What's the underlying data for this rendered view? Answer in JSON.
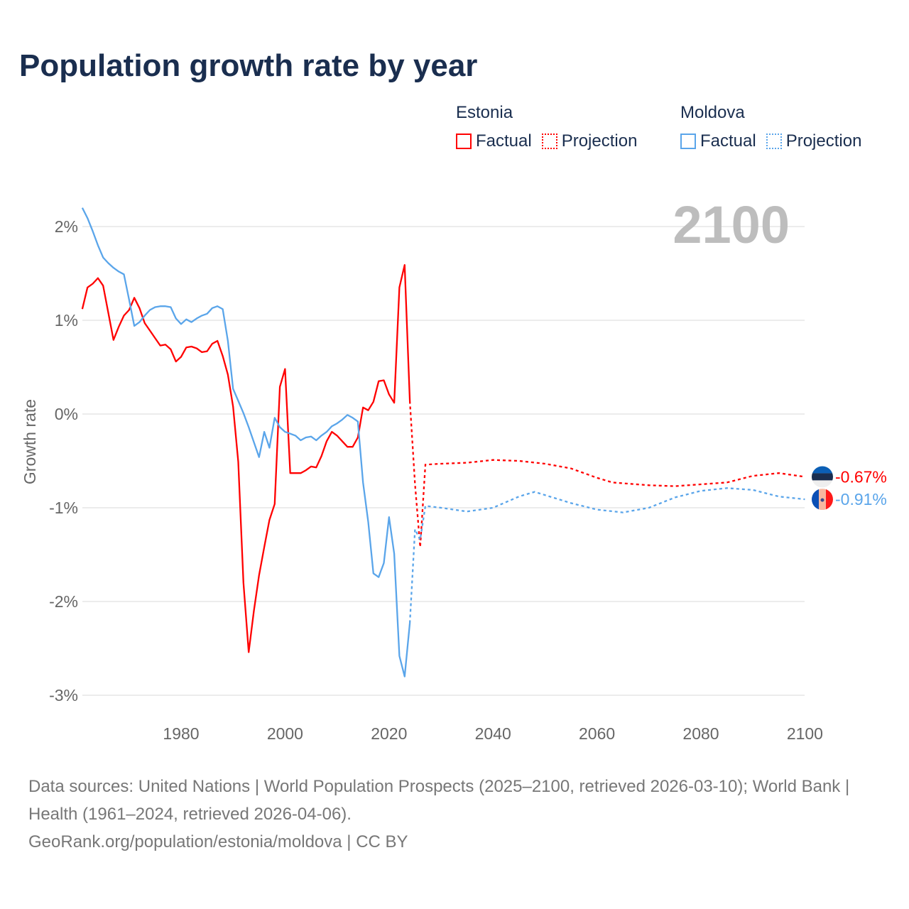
{
  "chart_data": {
    "type": "line",
    "title": "Population growth rate by year",
    "xlabel": "",
    "ylabel": "Growth rate",
    "xlim": [
      1961,
      2100
    ],
    "ylim": [
      -3.2,
      2.3
    ],
    "x_ticks": [
      1980,
      2000,
      2020,
      2040,
      2060,
      2080,
      2100
    ],
    "y_ticks": [
      2,
      1,
      0,
      -1,
      -2,
      -3
    ],
    "y_tick_labels": [
      "2%",
      "1%",
      "0%",
      "-1%",
      "-2%",
      "-3%"
    ],
    "x_tick_labels": [
      "1980",
      "2000",
      "2020",
      "2040",
      "2060",
      "2080",
      "2100"
    ],
    "grid": true,
    "year_watermark": "2100",
    "legend_placement": "top-right",
    "legend": {
      "groups": [
        {
          "name": "Estonia",
          "factual_label": "Factual",
          "projection_label": "Projection"
        },
        {
          "name": "Moldova",
          "factual_label": "Factual",
          "projection_label": "Projection"
        }
      ]
    },
    "series": [
      {
        "name": "Estonia",
        "color": "#ff0000",
        "end_label": "-0.67%",
        "factual": {
          "x": [
            1961,
            1962,
            1963,
            1964,
            1965,
            1966,
            1967,
            1968,
            1969,
            1970,
            1971,
            1972,
            1973,
            1974,
            1975,
            1976,
            1977,
            1978,
            1979,
            1980,
            1981,
            1982,
            1983,
            1984,
            1985,
            1986,
            1987,
            1988,
            1989,
            1990,
            1991,
            1992,
            1993,
            1994,
            1995,
            1996,
            1997,
            1998,
            1999,
            2000,
            2001,
            2002,
            2003,
            2004,
            2005,
            2006,
            2007,
            2008,
            2009,
            2010,
            2011,
            2012,
            2013,
            2014,
            2015,
            2016,
            2017,
            2018,
            2019,
            2020,
            2021,
            2022,
            2023,
            2024
          ],
          "y": [
            1.12,
            1.35,
            1.39,
            1.45,
            1.37,
            1.08,
            0.79,
            0.93,
            1.05,
            1.11,
            1.24,
            1.13,
            0.97,
            0.89,
            0.81,
            0.73,
            0.74,
            0.69,
            0.56,
            0.61,
            0.71,
            0.72,
            0.7,
            0.66,
            0.67,
            0.75,
            0.78,
            0.62,
            0.42,
            0.08,
            -0.51,
            -1.8,
            -2.54,
            -2.1,
            -1.72,
            -1.42,
            -1.13,
            -0.96,
            0.29,
            0.48,
            -0.63,
            -0.63,
            -0.63,
            -0.6,
            -0.56,
            -0.57,
            -0.45,
            -0.29,
            -0.19,
            -0.23,
            -0.29,
            -0.35,
            -0.35,
            -0.25,
            0.07,
            0.04,
            0.13,
            0.35,
            0.36,
            0.21,
            0.12,
            1.35,
            1.59,
            0.14
          ]
        },
        "projection": {
          "x": [
            2024,
            2025,
            2026,
            2027,
            2030,
            2035,
            2040,
            2045,
            2050,
            2055,
            2060,
            2063,
            2070,
            2075,
            2080,
            2085,
            2090,
            2095,
            2100
          ],
          "y": [
            0.14,
            -0.75,
            -1.42,
            -0.54,
            -0.53,
            -0.52,
            -0.49,
            -0.5,
            -0.53,
            -0.58,
            -0.68,
            -0.73,
            -0.76,
            -0.77,
            -0.75,
            -0.73,
            -0.66,
            -0.63,
            -0.67
          ]
        }
      },
      {
        "name": "Moldova",
        "color": "#5aa5ea",
        "end_label": "-0.91%",
        "factual": {
          "x": [
            1961,
            1962,
            1963,
            1964,
            1965,
            1966,
            1967,
            1968,
            1969,
            1970,
            1971,
            1972,
            1973,
            1974,
            1975,
            1976,
            1977,
            1978,
            1979,
            1980,
            1981,
            1982,
            1983,
            1984,
            1985,
            1986,
            1987,
            1988,
            1989,
            1990,
            1991,
            1992,
            1993,
            1994,
            1995,
            1996,
            1997,
            1998,
            1999,
            2000,
            2001,
            2002,
            2003,
            2004,
            2005,
            2006,
            2007,
            2008,
            2009,
            2010,
            2011,
            2012,
            2013,
            2014,
            2015,
            2016,
            2017,
            2018,
            2019,
            2020,
            2021,
            2022,
            2023,
            2024
          ],
          "y": [
            2.2,
            2.09,
            1.95,
            1.8,
            1.67,
            1.61,
            1.56,
            1.52,
            1.49,
            1.22,
            0.94,
            0.98,
            1.05,
            1.11,
            1.14,
            1.15,
            1.15,
            1.14,
            1.02,
            0.96,
            1.01,
            0.98,
            1.02,
            1.05,
            1.07,
            1.13,
            1.15,
            1.12,
            0.78,
            0.27,
            0.14,
            0.01,
            -0.14,
            -0.3,
            -0.46,
            -0.19,
            -0.36,
            -0.04,
            -0.14,
            -0.19,
            -0.21,
            -0.23,
            -0.28,
            -0.25,
            -0.24,
            -0.28,
            -0.23,
            -0.19,
            -0.13,
            -0.1,
            -0.06,
            -0.01,
            -0.04,
            -0.08,
            -0.73,
            -1.15,
            -1.7,
            -1.74,
            -1.59,
            -1.1,
            -1.49,
            -2.58,
            -2.8,
            -2.23
          ]
        },
        "projection": {
          "x": [
            2024,
            2025,
            2026,
            2027,
            2030,
            2035,
            2040,
            2045,
            2048,
            2055,
            2060,
            2065,
            2070,
            2075,
            2080,
            2085,
            2090,
            2095,
            2100
          ],
          "y": [
            -2.23,
            -1.23,
            -1.34,
            -0.98,
            -1.0,
            -1.04,
            -1.0,
            -0.88,
            -0.83,
            -0.95,
            -1.02,
            -1.05,
            -1.0,
            -0.89,
            -0.82,
            -0.79,
            -0.81,
            -0.88,
            -0.91
          ]
        }
      }
    ]
  },
  "footer": {
    "sources": "Data sources: United Nations | World Population Prospects (2025–2100, retrieved 2026-03-10); World Bank | Health (1961–2024, retrieved 2026-04-06).",
    "credit": "GeoRank.org/population/estonia/moldova | CC BY"
  }
}
